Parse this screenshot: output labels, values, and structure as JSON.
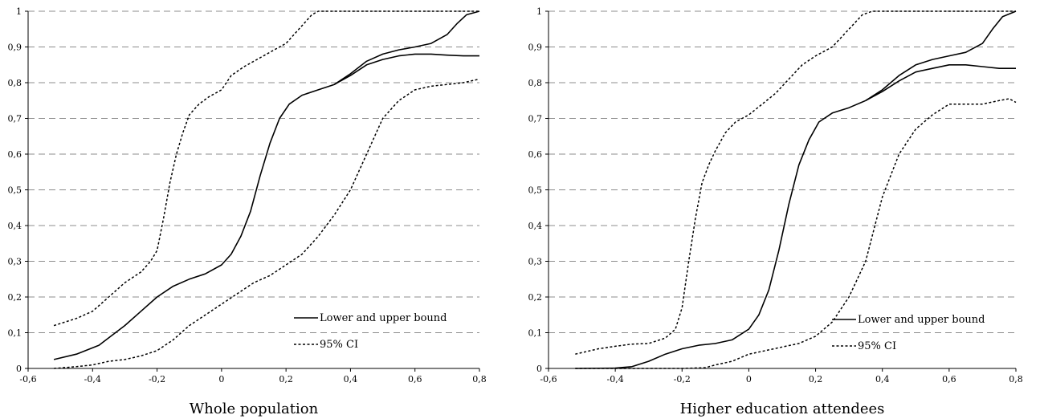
{
  "chart_data": [
    {
      "type": "line",
      "title": "",
      "xlabel": "Whole population",
      "ylabel": "",
      "xlim": [
        -0.6,
        0.8
      ],
      "ylim": [
        0,
        1
      ],
      "x_ticks": [
        "-0,6",
        "-0,4",
        "-0,2",
        "0",
        "0,2",
        "0,4",
        "0,6",
        "0,8"
      ],
      "y_ticks": [
        "0",
        "0,1",
        "0,2",
        "0,3",
        "0,4",
        "0,5",
        "0,6",
        "0,7",
        "0,8",
        "0,9",
        "1"
      ],
      "grid": "horizontal dashed",
      "legend_position": "bottom-right",
      "legend": [
        {
          "label": "Lower and upper bound",
          "style": "solid"
        },
        {
          "label": "95% CI",
          "style": "dotted"
        }
      ],
      "series": [
        {
          "style": "solid",
          "points": [
            [
              -0.52,
              0.025
            ],
            [
              -0.45,
              0.04
            ],
            [
              -0.38,
              0.065
            ],
            [
              -0.3,
              0.12
            ],
            [
              -0.25,
              0.16
            ],
            [
              -0.2,
              0.2
            ],
            [
              -0.15,
              0.23
            ],
            [
              -0.1,
              0.25
            ],
            [
              -0.05,
              0.265
            ],
            [
              0,
              0.29
            ],
            [
              0.03,
              0.32
            ],
            [
              0.06,
              0.37
            ],
            [
              0.09,
              0.44
            ],
            [
              0.12,
              0.54
            ],
            [
              0.15,
              0.63
            ],
            [
              0.18,
              0.7
            ],
            [
              0.21,
              0.74
            ],
            [
              0.25,
              0.765
            ],
            [
              0.3,
              0.78
            ],
            [
              0.35,
              0.795
            ],
            [
              0.4,
              0.82
            ],
            [
              0.45,
              0.85
            ],
            [
              0.5,
              0.865
            ],
            [
              0.55,
              0.875
            ],
            [
              0.6,
              0.88
            ],
            [
              0.65,
              0.88
            ],
            [
              0.7,
              0.877
            ],
            [
              0.75,
              0.875
            ],
            [
              0.8,
              0.875
            ]
          ]
        },
        {
          "style": "solid",
          "points": [
            [
              0.35,
              0.795
            ],
            [
              0.4,
              0.825
            ],
            [
              0.45,
              0.86
            ],
            [
              0.5,
              0.88
            ],
            [
              0.55,
              0.892
            ],
            [
              0.6,
              0.9
            ],
            [
              0.65,
              0.91
            ],
            [
              0.7,
              0.935
            ],
            [
              0.73,
              0.965
            ],
            [
              0.76,
              0.99
            ],
            [
              0.8,
              1.0
            ]
          ]
        },
        {
          "style": "dotted",
          "points": [
            [
              -0.52,
              0.12
            ],
            [
              -0.45,
              0.14
            ],
            [
              -0.4,
              0.16
            ],
            [
              -0.35,
              0.2
            ],
            [
              -0.3,
              0.24
            ],
            [
              -0.25,
              0.27
            ],
            [
              -0.22,
              0.3
            ],
            [
              -0.2,
              0.33
            ],
            [
              -0.18,
              0.42
            ],
            [
              -0.16,
              0.52
            ],
            [
              -0.14,
              0.6
            ],
            [
              -0.12,
              0.66
            ],
            [
              -0.1,
              0.71
            ],
            [
              -0.07,
              0.74
            ],
            [
              -0.04,
              0.76
            ],
            [
              0,
              0.78
            ],
            [
              0.03,
              0.82
            ],
            [
              0.07,
              0.845
            ],
            [
              0.12,
              0.87
            ],
            [
              0.16,
              0.89
            ],
            [
              0.2,
              0.91
            ],
            [
              0.24,
              0.95
            ],
            [
              0.28,
              0.99
            ],
            [
              0.3,
              1.0
            ],
            [
              0.8,
              1.0
            ]
          ]
        },
        {
          "style": "dotted",
          "points": [
            [
              -0.52,
              0.0
            ],
            [
              -0.45,
              0.005
            ],
            [
              -0.4,
              0.01
            ],
            [
              -0.35,
              0.02
            ],
            [
              -0.3,
              0.025
            ],
            [
              -0.25,
              0.035
            ],
            [
              -0.2,
              0.05
            ],
            [
              -0.15,
              0.08
            ],
            [
              -0.1,
              0.12
            ],
            [
              -0.05,
              0.15
            ],
            [
              0,
              0.18
            ],
            [
              0.05,
              0.21
            ],
            [
              0.1,
              0.24
            ],
            [
              0.15,
              0.26
            ],
            [
              0.2,
              0.29
            ],
            [
              0.25,
              0.32
            ],
            [
              0.3,
              0.37
            ],
            [
              0.35,
              0.43
            ],
            [
              0.4,
              0.5
            ],
            [
              0.45,
              0.6
            ],
            [
              0.5,
              0.7
            ],
            [
              0.55,
              0.75
            ],
            [
              0.6,
              0.78
            ],
            [
              0.65,
              0.79
            ],
            [
              0.7,
              0.795
            ],
            [
              0.75,
              0.8
            ],
            [
              0.8,
              0.81
            ]
          ]
        }
      ]
    },
    {
      "type": "line",
      "title": "",
      "xlabel": "Higher education attendees",
      "ylabel": "",
      "xlim": [
        -0.6,
        0.8
      ],
      "ylim": [
        0,
        1
      ],
      "x_ticks": [
        "-0,6",
        "-0,4",
        "-0,2",
        "0",
        "0,2",
        "0,4",
        "0,6",
        "0,8"
      ],
      "y_ticks": [
        "0",
        "0,1",
        "0,2",
        "0,3",
        "0,4",
        "0,5",
        "0,6",
        "0,7",
        "0,8",
        "0,9",
        "1"
      ],
      "grid": "horizontal dashed",
      "legend_position": "bottom-right",
      "legend": [
        {
          "label": "Lower and upper bound",
          "style": "solid"
        },
        {
          "label": "95% CI",
          "style": "dotted"
        }
      ],
      "series": [
        {
          "style": "solid",
          "points": [
            [
              -0.52,
              0.0
            ],
            [
              -0.4,
              0.001
            ],
            [
              -0.35,
              0.005
            ],
            [
              -0.3,
              0.02
            ],
            [
              -0.25,
              0.04
            ],
            [
              -0.2,
              0.055
            ],
            [
              -0.15,
              0.065
            ],
            [
              -0.1,
              0.07
            ],
            [
              -0.05,
              0.08
            ],
            [
              0,
              0.11
            ],
            [
              0.03,
              0.15
            ],
            [
              0.06,
              0.22
            ],
            [
              0.09,
              0.33
            ],
            [
              0.12,
              0.46
            ],
            [
              0.15,
              0.57
            ],
            [
              0.18,
              0.64
            ],
            [
              0.21,
              0.69
            ],
            [
              0.25,
              0.715
            ],
            [
              0.3,
              0.73
            ],
            [
              0.35,
              0.75
            ],
            [
              0.4,
              0.775
            ],
            [
              0.45,
              0.805
            ],
            [
              0.5,
              0.83
            ],
            [
              0.55,
              0.84
            ],
            [
              0.6,
              0.85
            ],
            [
              0.65,
              0.85
            ],
            [
              0.7,
              0.845
            ],
            [
              0.75,
              0.84
            ],
            [
              0.8,
              0.84
            ]
          ]
        },
        {
          "style": "solid",
          "points": [
            [
              0.35,
              0.75
            ],
            [
              0.4,
              0.78
            ],
            [
              0.45,
              0.82
            ],
            [
              0.5,
              0.85
            ],
            [
              0.55,
              0.865
            ],
            [
              0.6,
              0.875
            ],
            [
              0.65,
              0.885
            ],
            [
              0.7,
              0.91
            ],
            [
              0.73,
              0.95
            ],
            [
              0.76,
              0.985
            ],
            [
              0.8,
              1.0
            ]
          ]
        },
        {
          "style": "dotted",
          "points": [
            [
              -0.52,
              0.04
            ],
            [
              -0.45,
              0.055
            ],
            [
              -0.4,
              0.062
            ],
            [
              -0.35,
              0.068
            ],
            [
              -0.3,
              0.07
            ],
            [
              -0.25,
              0.085
            ],
            [
              -0.22,
              0.11
            ],
            [
              -0.2,
              0.17
            ],
            [
              -0.18,
              0.3
            ],
            [
              -0.16,
              0.42
            ],
            [
              -0.14,
              0.52
            ],
            [
              -0.12,
              0.57
            ],
            [
              -0.1,
              0.61
            ],
            [
              -0.07,
              0.66
            ],
            [
              -0.04,
              0.69
            ],
            [
              0,
              0.71
            ],
            [
              0.04,
              0.74
            ],
            [
              0.08,
              0.77
            ],
            [
              0.12,
              0.81
            ],
            [
              0.16,
              0.85
            ],
            [
              0.2,
              0.875
            ],
            [
              0.25,
              0.9
            ],
            [
              0.3,
              0.95
            ],
            [
              0.34,
              0.99
            ],
            [
              0.37,
              1.0
            ],
            [
              0.8,
              1.0
            ]
          ]
        },
        {
          "style": "dotted",
          "points": [
            [
              -0.52,
              0.0
            ],
            [
              -0.2,
              0.0
            ],
            [
              -0.13,
              0.002
            ],
            [
              -0.1,
              0.01
            ],
            [
              -0.05,
              0.02
            ],
            [
              0,
              0.04
            ],
            [
              0.05,
              0.05
            ],
            [
              0.1,
              0.06
            ],
            [
              0.15,
              0.07
            ],
            [
              0.2,
              0.09
            ],
            [
              0.25,
              0.13
            ],
            [
              0.3,
              0.2
            ],
            [
              0.35,
              0.3
            ],
            [
              0.4,
              0.48
            ],
            [
              0.45,
              0.6
            ],
            [
              0.5,
              0.67
            ],
            [
              0.55,
              0.71
            ],
            [
              0.6,
              0.74
            ],
            [
              0.65,
              0.74
            ],
            [
              0.7,
              0.74
            ],
            [
              0.75,
              0.75
            ],
            [
              0.78,
              0.755
            ],
            [
              0.8,
              0.745
            ]
          ]
        }
      ]
    }
  ]
}
